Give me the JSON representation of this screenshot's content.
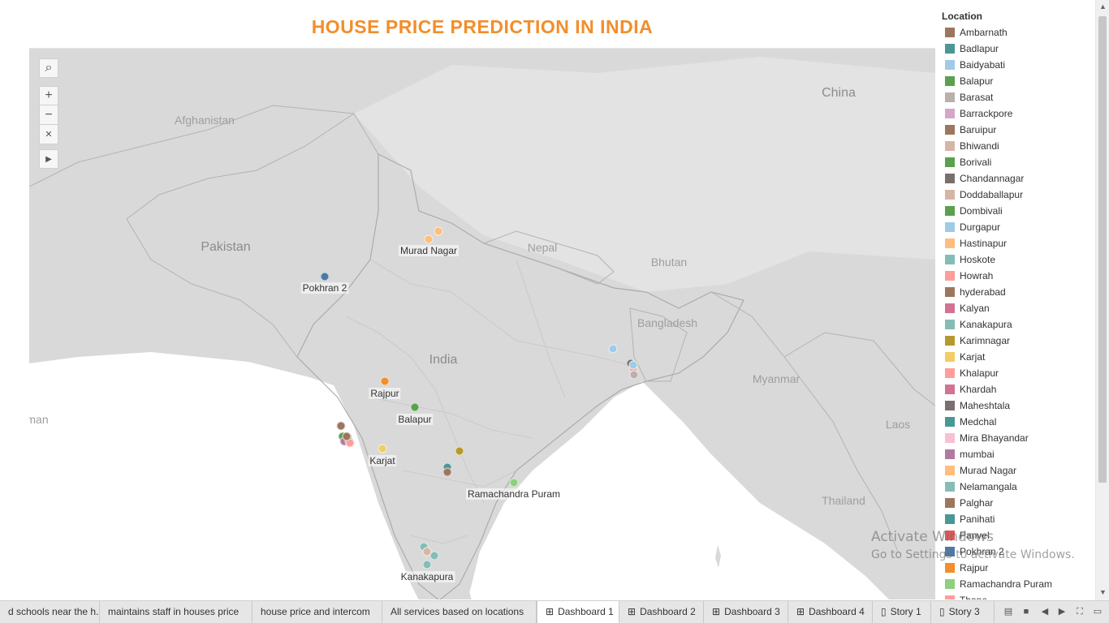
{
  "title": "HOUSE PRICE PREDICTION IN INDIA",
  "map": {
    "country_labels": [
      {
        "id": "afghanistan",
        "text": "Afghanistan",
        "size": "sm"
      },
      {
        "id": "pakistan",
        "text": "Pakistan",
        "size": "lg"
      },
      {
        "id": "nepal",
        "text": "Nepal",
        "size": "sm"
      },
      {
        "id": "bhutan",
        "text": "Bhutan",
        "size": "sm"
      },
      {
        "id": "china",
        "text": "China",
        "size": "lg"
      },
      {
        "id": "bangladesh",
        "text": "Bangladesh",
        "size": "sm"
      },
      {
        "id": "india",
        "text": "India",
        "size": "lg"
      },
      {
        "id": "myanmar",
        "text": "Myanmar",
        "size": "sm"
      },
      {
        "id": "laos",
        "text": "Laos",
        "size": "sm"
      },
      {
        "id": "thailand",
        "text": "Thailand",
        "size": "sm"
      },
      {
        "id": "oman",
        "text": "man",
        "size": "sm"
      }
    ],
    "city_labels": [
      {
        "id": "murad-nagar",
        "text": "Murad Nagar"
      },
      {
        "id": "pokhran-2",
        "text": "Pokhran 2"
      },
      {
        "id": "rajpur",
        "text": "Rajpur"
      },
      {
        "id": "balapur",
        "text": "Balapur"
      },
      {
        "id": "karjat",
        "text": "Karjat"
      },
      {
        "id": "ramachandra-puram",
        "text": "Ramachandra Puram"
      },
      {
        "id": "kanakapura",
        "text": "Kanakapura"
      }
    ],
    "tools": [
      {
        "icon": "search-icon",
        "glyph": "⌕"
      },
      {
        "icon": "zoom-in-icon",
        "glyph": "+"
      },
      {
        "icon": "zoom-out-icon",
        "glyph": "−"
      },
      {
        "icon": "unpin-icon",
        "glyph": "✕"
      },
      {
        "icon": "expand-arrow-icon",
        "glyph": "▶"
      }
    ]
  },
  "legend": {
    "title": "Location",
    "items": [
      {
        "label": "Ambarnath",
        "color": "#9c755f"
      },
      {
        "label": "Badlapur",
        "color": "#499894"
      },
      {
        "label": "Baidyabati",
        "color": "#a0cbe8"
      },
      {
        "label": "Balapur",
        "color": "#59a14f"
      },
      {
        "label": "Barasat",
        "color": "#bab0ac"
      },
      {
        "label": "Barrackpore",
        "color": "#d4a6c8"
      },
      {
        "label": "Baruipur",
        "color": "#9d7660"
      },
      {
        "label": "Bhiwandi",
        "color": "#d7b5a6"
      },
      {
        "label": "Borivali",
        "color": "#59a14f"
      },
      {
        "label": "Chandannagar",
        "color": "#79706e"
      },
      {
        "label": "Doddaballapur",
        "color": "#d7b5a6"
      },
      {
        "label": "Dombivali",
        "color": "#59a14f"
      },
      {
        "label": "Durgapur",
        "color": "#a0cbe8"
      },
      {
        "label": "Hastinapur",
        "color": "#ffbe7d"
      },
      {
        "label": "Hoskote",
        "color": "#86bcb6"
      },
      {
        "label": "Howrah",
        "color": "#ff9d9a"
      },
      {
        "label": "hyderabad",
        "color": "#9d7660"
      },
      {
        "label": "Kalyan",
        "color": "#d37295"
      },
      {
        "label": "Kanakapura",
        "color": "#86bcb6"
      },
      {
        "label": "Karimnagar",
        "color": "#b6992d"
      },
      {
        "label": "Karjat",
        "color": "#f1ce63"
      },
      {
        "label": "Khalapur",
        "color": "#ff9d9a"
      },
      {
        "label": "Khardah",
        "color": "#d37295"
      },
      {
        "label": "Maheshtala",
        "color": "#79706e"
      },
      {
        "label": "Medchal",
        "color": "#499894"
      },
      {
        "label": "Mira Bhayandar",
        "color": "#fabfd2"
      },
      {
        "label": "mumbai",
        "color": "#b07aa1"
      },
      {
        "label": "Murad Nagar",
        "color": "#ffbe7d"
      },
      {
        "label": "Nelamangala",
        "color": "#86bcb6"
      },
      {
        "label": "Palghar",
        "color": "#9d7660"
      },
      {
        "label": "Panihati",
        "color": "#499894"
      },
      {
        "label": "Panvel",
        "color": "#e15759"
      },
      {
        "label": "Pokhran 2",
        "color": "#4e79a7"
      },
      {
        "label": "Rajpur",
        "color": "#f28e2b"
      },
      {
        "label": "Ramachandra Puram",
        "color": "#8cd17d"
      },
      {
        "label": "Thane",
        "color": "#ff9d9a"
      }
    ]
  },
  "watermark": {
    "line1": "Activate Windows",
    "line2": "Go to Settings to activate Windows."
  },
  "tabs": [
    {
      "label": "d schools near the h...",
      "type": "sheet",
      "active": false
    },
    {
      "label": "maintains staff in houses price",
      "type": "sheet",
      "active": false
    },
    {
      "label": "house price and intercom",
      "type": "sheet",
      "active": false
    },
    {
      "label": "All services based on locations",
      "type": "sheet",
      "active": false
    },
    {
      "label": "Dashboard 1",
      "type": "dashboard",
      "active": true
    },
    {
      "label": "Dashboard 2",
      "type": "dashboard",
      "active": false
    },
    {
      "label": "Dashboard 3",
      "type": "dashboard",
      "active": false
    },
    {
      "label": "Dashboard 4",
      "type": "dashboard",
      "active": false
    },
    {
      "label": "Story 1",
      "type": "story",
      "active": false
    },
    {
      "label": "Story 3",
      "type": "story",
      "active": false
    }
  ],
  "tab_controls": [
    {
      "icon": "show-filmstrip-icon",
      "glyph": "▤"
    },
    {
      "icon": "show-tabs-icon",
      "glyph": "■"
    },
    {
      "icon": "previous-sheet-icon",
      "glyph": "◀"
    },
    {
      "icon": "next-sheet-icon",
      "glyph": "▶"
    },
    {
      "icon": "presentation-mode-icon",
      "glyph": "⛶"
    },
    {
      "icon": "device-preview-icon",
      "glyph": "▭"
    }
  ]
}
